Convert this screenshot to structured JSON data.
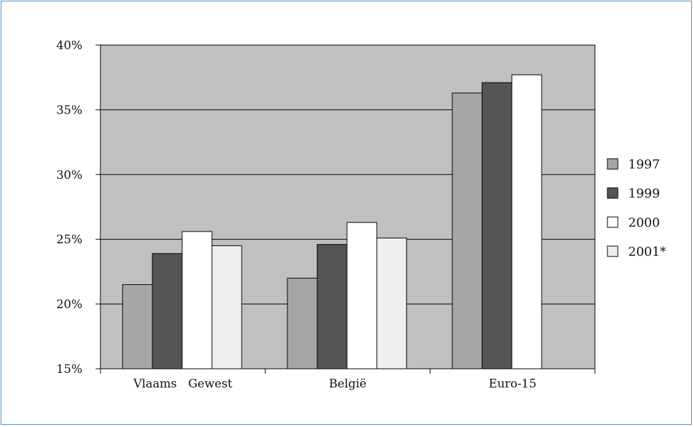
{
  "chart_data": {
    "type": "bar",
    "categories": [
      "Vlaams   Gewest",
      "België",
      "Euro-15"
    ],
    "series": [
      {
        "name": "1997",
        "color": "#a6a6a6",
        "values": [
          21.5,
          22.0,
          36.3
        ]
      },
      {
        "name": "1999",
        "color": "#555555",
        "values": [
          23.9,
          24.6,
          37.1
        ]
      },
      {
        "name": "2000",
        "color": "#ffffff",
        "values": [
          25.6,
          26.3,
          37.7
        ]
      },
      {
        "name": "2001*",
        "color": "#efefef",
        "values": [
          24.5,
          25.1,
          null
        ]
      }
    ],
    "ylim": [
      15,
      40
    ],
    "yticks": [
      15,
      20,
      25,
      30,
      35,
      40
    ],
    "ytick_labels": [
      "15%",
      "20%",
      "25%",
      "30%",
      "35%",
      "40%"
    ],
    "grid": true,
    "plot_background": "#c0c0c0",
    "legend_position": "right",
    "title": "",
    "xlabel": "",
    "ylabel": ""
  }
}
